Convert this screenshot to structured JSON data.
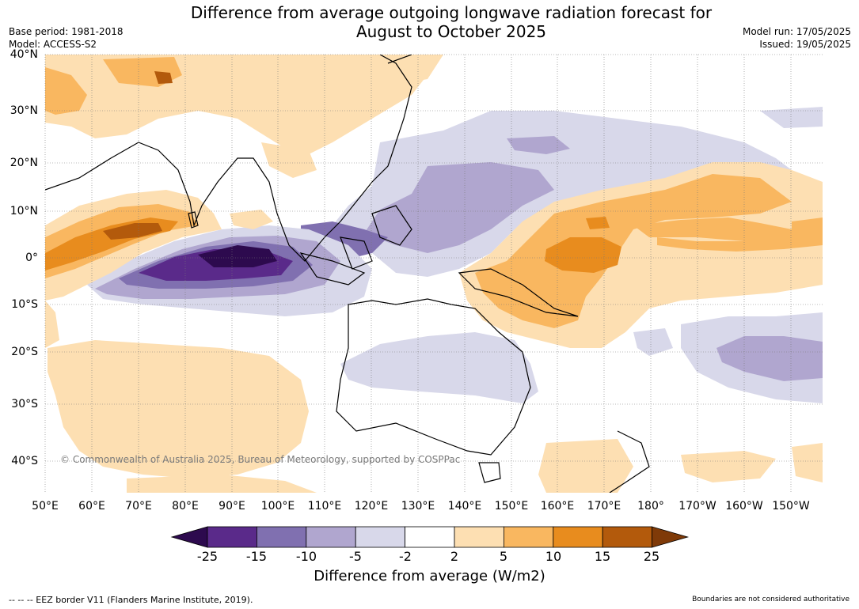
{
  "title_line1": "Difference from average outgoing longwave radiation forecast for",
  "title_line2": "August to October 2025",
  "meta_left": [
    "Base period: 1981-2018",
    "Model: ACCESS-S2"
  ],
  "meta_right": [
    "Model run: 17/05/2025",
    "Issued: 19/05/2025"
  ],
  "lat_labels": [
    "40°N",
    "30°N",
    "20°N",
    "10°N",
    "0°",
    "10°S",
    "20°S",
    "30°S",
    "40°S"
  ],
  "lon_labels": [
    "50°E",
    "60°E",
    "70°E",
    "80°E",
    "90°E",
    "100°E",
    "110°E",
    "120°E",
    "130°E",
    "140°E",
    "150°E",
    "160°E",
    "170°E",
    "180°",
    "170°W",
    "160°W",
    "150°W"
  ],
  "copyright": "© Commonwealth of Australia 2025, Bureau of Meteorology, supported by COSPPac",
  "colorbar": {
    "ticks": [
      "-25",
      "-15",
      "-10",
      "-5",
      "-2",
      "2",
      "5",
      "10",
      "15",
      "25"
    ],
    "colors": [
      "#2d0a4e",
      "#5a2a8a",
      "#8070b0",
      "#b0a6cf",
      "#d8d8ea",
      "#ffffff",
      "#fddfb2",
      "#f9b760",
      "#e88c1e",
      "#b35a0c",
      "#7f3a08"
    ],
    "label": "Difference from average (W/m2)"
  },
  "footer_left": "--  --  -- EEZ border V11 (Flanders Marine Institute, 2019).",
  "footer_right": "Boundaries are not considered authoritative"
}
